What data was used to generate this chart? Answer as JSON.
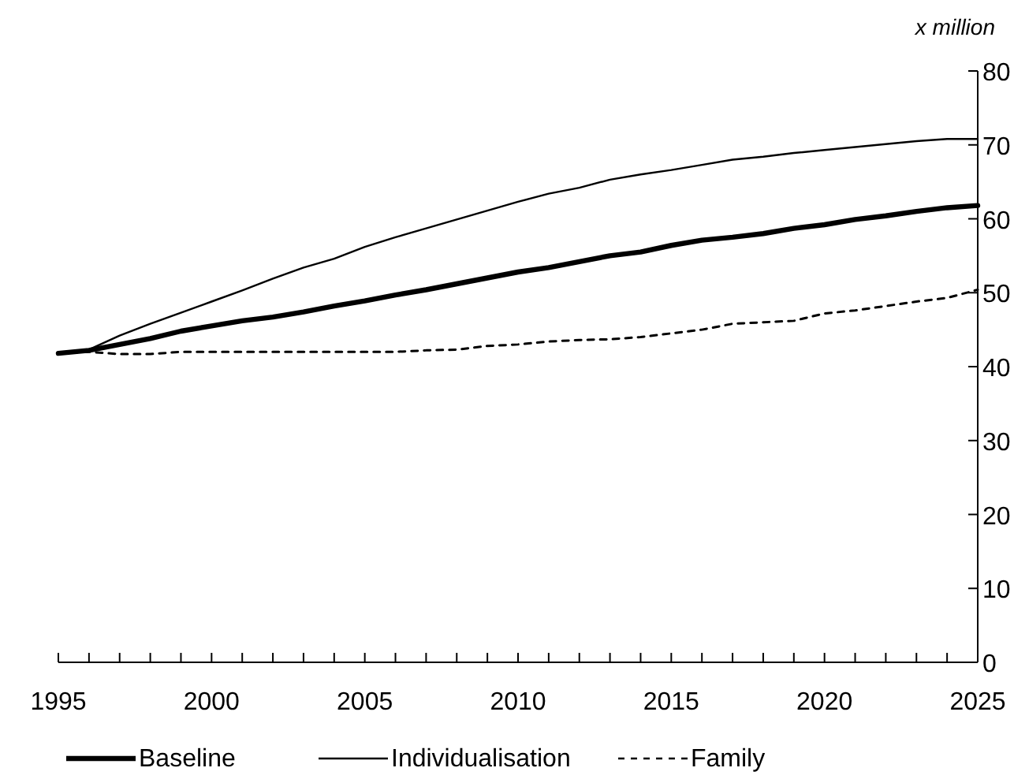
{
  "chart_data": {
    "type": "line",
    "ylabel": "x million",
    "x": [
      1995,
      1996,
      1997,
      1998,
      1999,
      2000,
      2001,
      2002,
      2003,
      2004,
      2005,
      2006,
      2007,
      2008,
      2009,
      2010,
      2011,
      2012,
      2013,
      2014,
      2015,
      2016,
      2017,
      2018,
      2019,
      2020,
      2021,
      2022,
      2023,
      2024,
      2025
    ],
    "series": [
      {
        "name": "Baseline",
        "color": "#000000",
        "line_style": "solid",
        "values": [
          41.8,
          42.2,
          43,
          43.8,
          44.8,
          45.5,
          46.2,
          46.7,
          47.4,
          48.2,
          48.9,
          49.7,
          50.4,
          51.2,
          52,
          52.8,
          53.4,
          54.2,
          55,
          55.5,
          56.4,
          57.1,
          57.5,
          58,
          58.7,
          59.2,
          59.9,
          60.4,
          61,
          61.5,
          61.8
        ]
      },
      {
        "name": "Individualisation",
        "color": "#000000",
        "line_style": "solid",
        "values": [
          41.8,
          42.3,
          44.2,
          45.8,
          47.3,
          48.8,
          50.3,
          51.9,
          53.4,
          54.6,
          56.2,
          57.5,
          58.7,
          59.9,
          61.1,
          62.3,
          63.4,
          64.2,
          65.3,
          66,
          66.6,
          67.3,
          68,
          68.4,
          68.9,
          69.3,
          69.7,
          70.1,
          70.5,
          70.8,
          70.8
        ]
      },
      {
        "name": "Family",
        "color": "#000000",
        "line_style": "dotted",
        "values": [
          41.8,
          42,
          41.7,
          41.7,
          42,
          42,
          42,
          42,
          42,
          42,
          42,
          42,
          42.2,
          42.3,
          42.8,
          43,
          43.4,
          43.6,
          43.7,
          44,
          44.5,
          45,
          45.8,
          46,
          46.2,
          47.2,
          47.6,
          48.2,
          48.8,
          49.3,
          50.4
        ]
      }
    ],
    "xlim": [
      1995,
      2025
    ],
    "xticks": [
      1995,
      {
        "value": 1996,
        "label": null
      },
      {
        "value": 1997,
        "label": null
      },
      {
        "value": 1998,
        "label": null
      },
      {
        "value": 1999,
        "label": null
      },
      2000,
      {
        "value": 2001,
        "label": null
      },
      {
        "value": 2002,
        "label": null
      },
      {
        "value": 2003,
        "label": null
      },
      {
        "value": 2004,
        "label": null
      },
      2005,
      {
        "value": 2006,
        "label": null
      },
      {
        "value": 2007,
        "label": null
      },
      {
        "value": 2008,
        "label": null
      },
      {
        "value": 2009,
        "label": null
      },
      2010,
      {
        "value": 2011,
        "label": null
      },
      {
        "value": 2012,
        "label": null
      },
      {
        "value": 2013,
        "label": null
      },
      {
        "value": 2014,
        "label": null
      },
      2015,
      {
        "value": 2016,
        "label": null
      },
      {
        "value": 2017,
        "label": null
      },
      {
        "value": 2018,
        "label": null
      },
      {
        "value": 2019,
        "label": null
      },
      2020,
      {
        "value": 2021,
        "label": null
      },
      {
        "value": 2022,
        "label": null
      },
      {
        "value": 2023,
        "label": null
      },
      {
        "value": 2024,
        "label": null
      },
      2025
    ],
    "ylim": [
      0,
      80
    ],
    "yticks": [
      0,
      10,
      20,
      30,
      40,
      50,
      60,
      70,
      80
    ],
    "grid": false,
    "legend": "bottom"
  }
}
